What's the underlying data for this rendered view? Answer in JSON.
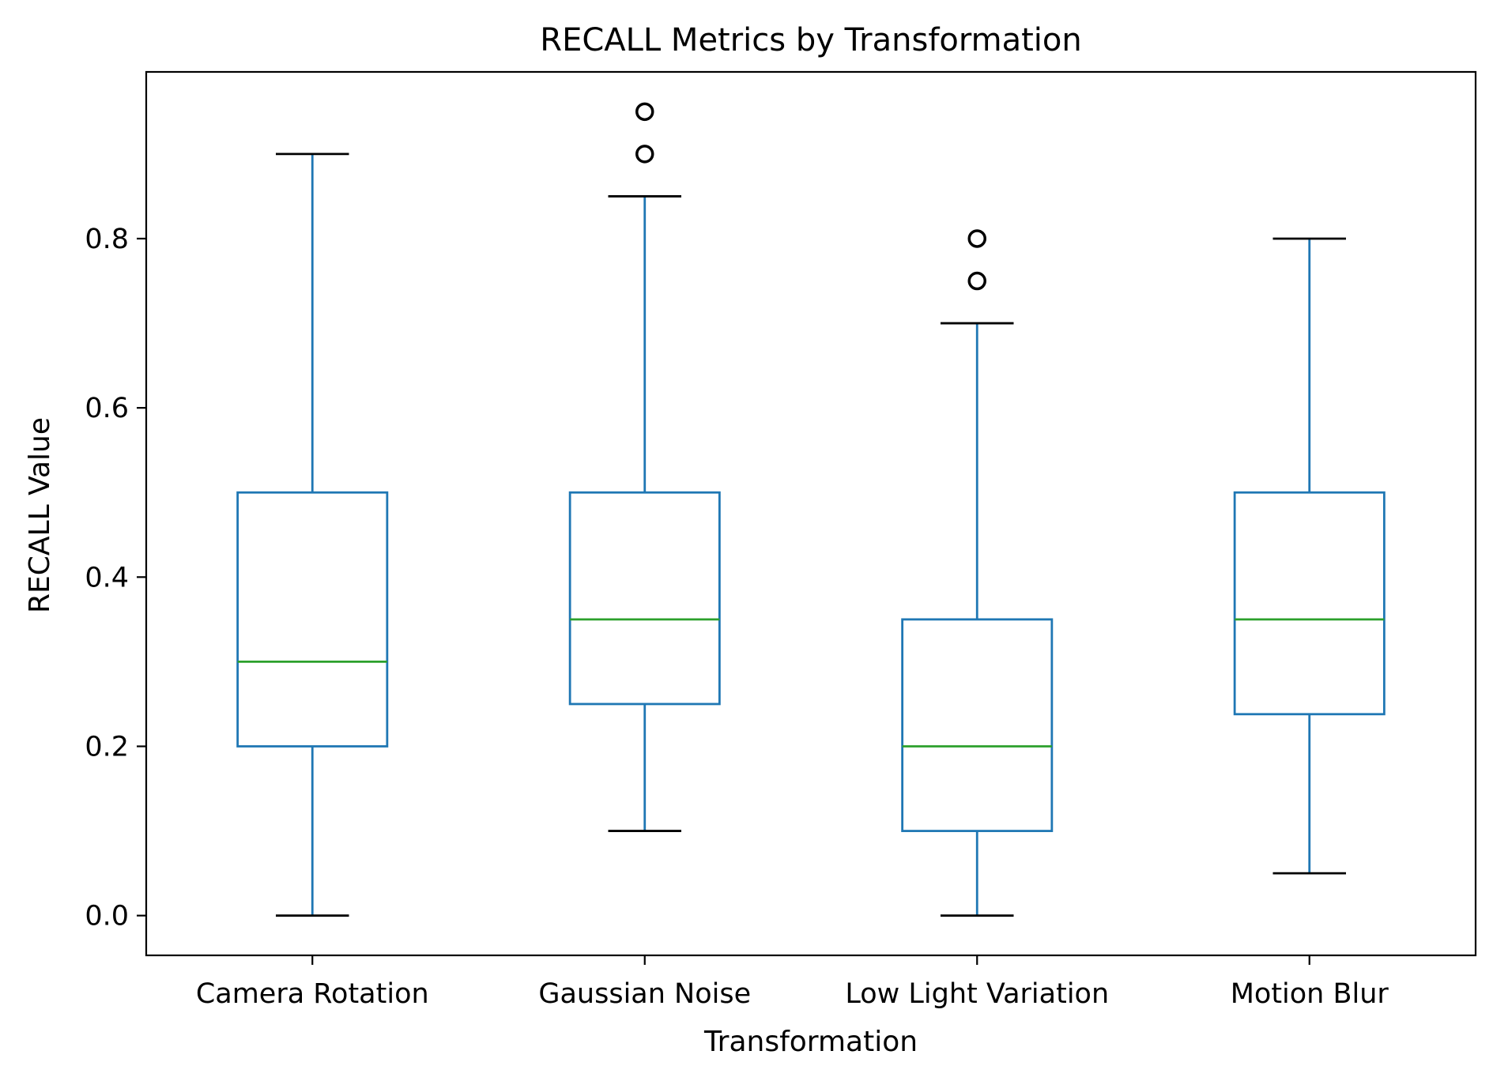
{
  "chart_data": {
    "type": "box",
    "title": "RECALL Metrics by Transformation",
    "xlabel": "Transformation",
    "ylabel": "RECALL Value",
    "ylim": [
      -0.047,
      0.997
    ],
    "yticks": [
      "0.0",
      "0.2",
      "0.4",
      "0.6",
      "0.8"
    ],
    "yticks_values": [
      0.0,
      0.2,
      0.4,
      0.6,
      0.8
    ],
    "grid": false,
    "categories": [
      "Camera Rotation",
      "Gaussian Noise",
      "Low Light Variation",
      "Motion Blur"
    ],
    "boxes": [
      {
        "category": "Camera Rotation",
        "whisker_low": 0.0,
        "q1": 0.2,
        "median": 0.3,
        "q3": 0.5,
        "whisker_high": 0.9,
        "outliers": []
      },
      {
        "category": "Gaussian Noise",
        "whisker_low": 0.1,
        "q1": 0.25,
        "median": 0.35,
        "q3": 0.5,
        "whisker_high": 0.85,
        "outliers": [
          0.9,
          0.95
        ]
      },
      {
        "category": "Low Light Variation",
        "whisker_low": 0.0,
        "q1": 0.1,
        "median": 0.2,
        "q3": 0.35,
        "whisker_high": 0.7,
        "outliers": [
          0.75,
          0.8
        ]
      },
      {
        "category": "Motion Blur",
        "whisker_low": 0.05,
        "q1": 0.238,
        "median": 0.35,
        "q3": 0.5,
        "whisker_high": 0.8,
        "outliers": []
      }
    ],
    "colors": {
      "box": "#1f77b4",
      "median": "#2ca02c",
      "cap": "#000000",
      "outlier": "#000000"
    }
  }
}
